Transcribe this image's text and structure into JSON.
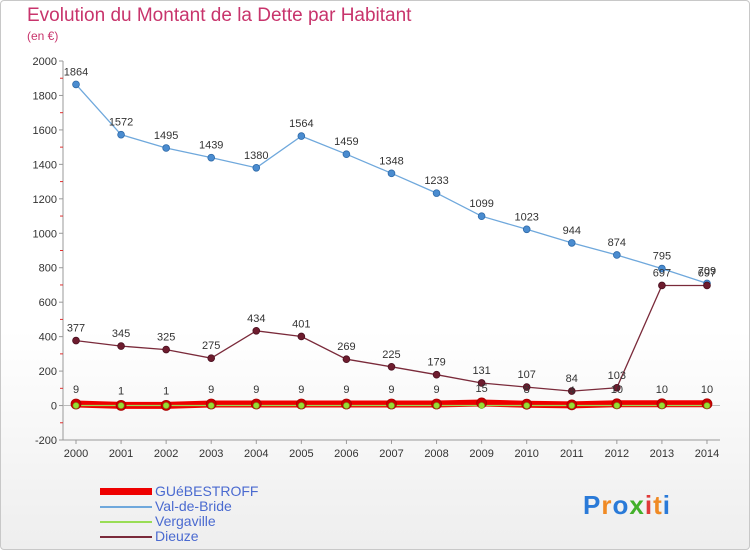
{
  "title": "Evolution du Montant de la Dette par Habitant",
  "subtitle": "(en €)",
  "logo": {
    "text": "Proxiti",
    "colors": [
      "#2a7ad8",
      "#f08a24",
      "#2a7ad8",
      "#43b02a",
      "#e03a3a",
      "#f08a24",
      "#2a7ad8"
    ]
  },
  "chart_data": {
    "type": "line",
    "x": [
      2000,
      2001,
      2002,
      2003,
      2004,
      2005,
      2006,
      2007,
      2008,
      2009,
      2010,
      2011,
      2012,
      2013,
      2014
    ],
    "ylim": [
      -200,
      2000
    ],
    "yticks": [
      -200,
      0,
      200,
      400,
      600,
      800,
      1000,
      1200,
      1400,
      1600,
      1800,
      2000
    ],
    "grid": false,
    "legend_position": "bottom-left",
    "series": [
      {
        "name": "GUéBESTROFF",
        "color": "#ee0000",
        "values": [
          9,
          1,
          1,
          9,
          9,
          9,
          9,
          9,
          9,
          15,
          8,
          4,
          10,
          10,
          10
        ],
        "labels": [
          "9",
          "1",
          "1",
          "9",
          "9",
          "9",
          "9",
          "9",
          "9",
          "15",
          "8",
          "4",
          "10",
          "10",
          "10"
        ]
      },
      {
        "name": "Val-de-Bride",
        "color": "#6fa8dc",
        "values": [
          1864,
          1572,
          1495,
          1439,
          1380,
          1564,
          1459,
          1348,
          1233,
          1099,
          1023,
          944,
          874,
          795,
          709
        ],
        "labels": [
          "1864",
          "1572",
          "1495",
          "1439",
          "1380",
          "1564",
          "1459",
          "1348",
          "1233",
          "1099",
          "1023",
          "944",
          "874",
          "795",
          "709"
        ]
      },
      {
        "name": "Vergaville",
        "color": "#99dd55",
        "values": [
          0,
          0,
          0,
          0,
          0,
          0,
          0,
          0,
          0,
          0,
          0,
          0,
          0,
          0,
          0
        ]
      },
      {
        "name": "Dieuze",
        "color": "#7a2a3a",
        "values": [
          377,
          345,
          325,
          275,
          434,
          401,
          269,
          225,
          179,
          131,
          107,
          84,
          103,
          697,
          697
        ],
        "labels": [
          "377",
          "345",
          "325",
          "275",
          "434",
          "401",
          "269",
          "225",
          "179",
          "131",
          "107",
          "84",
          "103",
          "697",
          "697"
        ]
      }
    ]
  }
}
